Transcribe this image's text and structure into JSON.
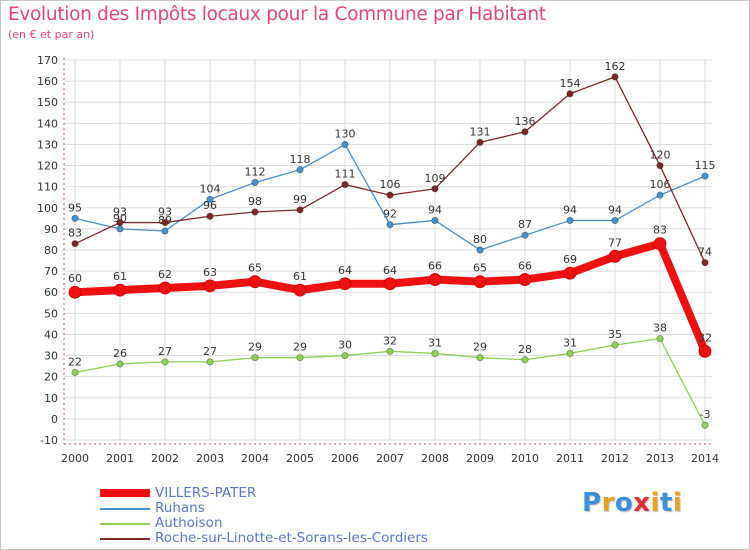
{
  "title": "Evolution des Impôts locaux pour la Commune par Habitant",
  "subtitle": "(en € et par an)",
  "logo": {
    "text": "Proxiti",
    "colors": [
      "#3a8fd8",
      "#e8a020",
      "#3a8fd8",
      "#e03030",
      "#e8a020",
      "#3a8fd8",
      "#e8a020"
    ]
  },
  "chart_data": {
    "type": "line",
    "x": [
      2000,
      2001,
      2002,
      2003,
      2004,
      2005,
      2006,
      2007,
      2008,
      2009,
      2010,
      2011,
      2012,
      2013,
      2014
    ],
    "ylim": [
      -10,
      170
    ],
    "y_ticks": [
      -10,
      0,
      10,
      20,
      30,
      40,
      50,
      60,
      70,
      80,
      90,
      100,
      110,
      120,
      130,
      140,
      150,
      160,
      170
    ],
    "grid": true,
    "legend_position": "bottom-left",
    "series": [
      {
        "name": "Ruhans",
        "color": "#4a90c8",
        "values": [
          95,
          90,
          89,
          104,
          112,
          118,
          130,
          92,
          94,
          80,
          87,
          94,
          94,
          106,
          115
        ],
        "labels": [
          "95",
          "90",
          "89",
          "104",
          "112",
          "118",
          "130",
          "92",
          "94",
          "80",
          "87",
          "94",
          "94",
          "106",
          "115"
        ]
      },
      {
        "name": "Authoison",
        "color": "#8fcf5a",
        "values": [
          22,
          26,
          27,
          27,
          29,
          29,
          30,
          32,
          31,
          29,
          28,
          31,
          35,
          38,
          -3
        ],
        "labels": [
          "22",
          "26",
          "27",
          "27",
          "29",
          "29",
          "30",
          "32",
          "31",
          "29",
          "28",
          "31",
          "35",
          "38",
          "-3"
        ]
      },
      {
        "name": "Roche-sur-Linotte-et-Sorans-les-Cordiers",
        "color": "#7a2a2a",
        "values": [
          83,
          93,
          93,
          96,
          98,
          99,
          111,
          106,
          109,
          131,
          136,
          154,
          162,
          120,
          74
        ],
        "labels": [
          "83",
          "93",
          "93",
          "96",
          "98",
          "99",
          "111",
          "106",
          "109",
          "131",
          "136",
          "154",
          "162",
          "120",
          "74"
        ]
      },
      {
        "name": "VILLERS-PATER",
        "color": "#ee1111",
        "values": [
          60,
          61,
          62,
          63,
          65,
          61,
          64,
          64,
          66,
          65,
          66,
          69,
          77,
          83,
          32
        ],
        "labels": [
          "60",
          "61",
          "62",
          "63",
          "65",
          "61",
          "64",
          "64",
          "66",
          "65",
          "66",
          "69",
          "77",
          "83",
          "32"
        ]
      }
    ],
    "legend": [
      {
        "name": "VILLERS-PATER",
        "color": "#ee1111"
      },
      {
        "name": "Ruhans",
        "color": "#4a90c8"
      },
      {
        "name": "Authoison",
        "color": "#8fcf5a"
      },
      {
        "name": "Roche-sur-Linotte-et-Sorans-les-Cordiers",
        "color": "#7a2a2a"
      }
    ]
  }
}
